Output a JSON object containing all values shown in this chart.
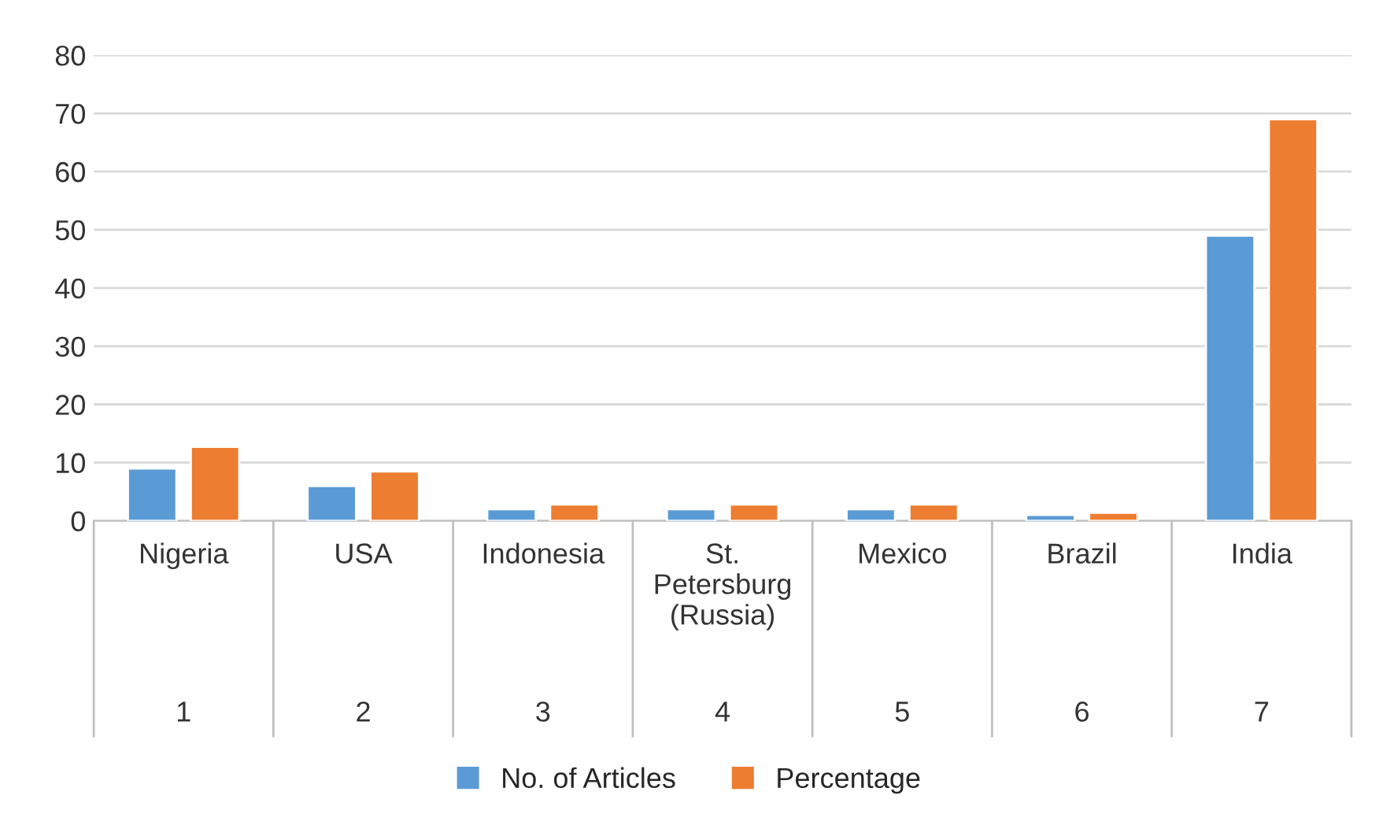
{
  "chart_data": {
    "type": "bar",
    "categories": [
      "Nigeria",
      "USA",
      "Indonesia",
      "St. Petersburg (Russia)",
      "Mexico",
      "Brazil",
      "India"
    ],
    "series": [
      {
        "name": "No. of Articles",
        "color": "#5b9bd5",
        "values": [
          9,
          6,
          2,
          2,
          2,
          1,
          49
        ]
      },
      {
        "name": "Percentage",
        "color": "#ed7d31",
        "values": [
          12.7,
          8.5,
          2.8,
          2.8,
          2.8,
          1.4,
          69
        ]
      }
    ],
    "annotations": [
      "1",
      "2",
      "3",
      "4",
      "5",
      "6",
      "7"
    ],
    "ylim": [
      0,
      80
    ],
    "yticks": [
      0,
      10,
      20,
      30,
      40,
      50,
      60,
      70,
      80
    ],
    "grid": "y",
    "legend": "bottom"
  }
}
